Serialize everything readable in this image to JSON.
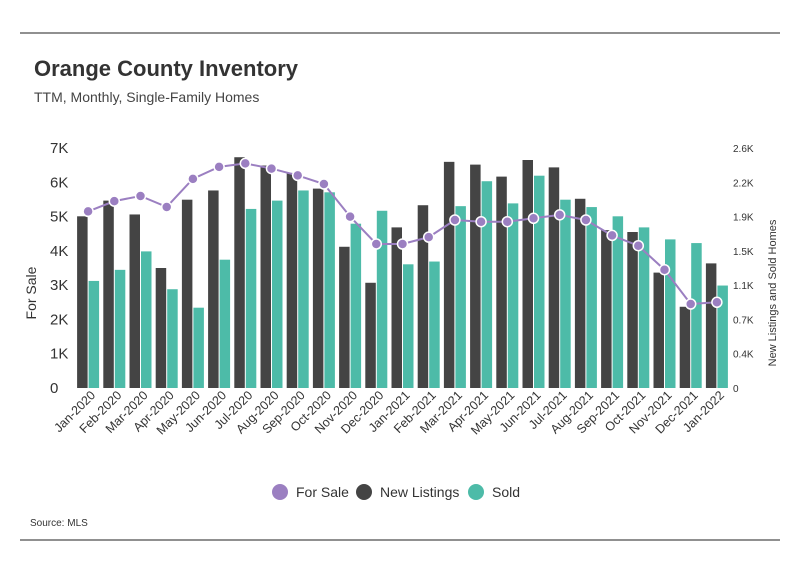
{
  "chart": {
    "title": "Orange County Inventory",
    "subtitle": "TTM, Monthly, Single-Family Homes",
    "source": "Source: MLS"
  },
  "colors": {
    "for_sale": "#9b7fc1",
    "new_listings": "#444444",
    "sold": "#4dbba8"
  },
  "chart_data": {
    "type": "bar",
    "title": "Orange County Inventory",
    "subtitle": "TTM, Monthly, Single-Family Homes",
    "ylabel": "For Sale",
    "y2label": "New Listings and Sold Homes",
    "ylim": [
      0,
      7000
    ],
    "y2lim": [
      0,
      2600
    ],
    "yticks": [
      "0",
      "1K",
      "2K",
      "3K",
      "4K",
      "5K",
      "6K",
      "7K"
    ],
    "y2ticks": [
      "0",
      "0.4K",
      "0.7K",
      "1.1K",
      "1.5K",
      "1.9K",
      "2.2K",
      "2.6K"
    ],
    "grid": false,
    "legend_position": "bottom",
    "categories": [
      "Jan-2020",
      "Feb-2020",
      "Mar-2020",
      "Apr-2020",
      "May-2020",
      "Jun-2020",
      "Jul-2020",
      "Aug-2020",
      "Sep-2020",
      "Oct-2020",
      "Nov-2020",
      "Dec-2020",
      "Jan-2021",
      "Feb-2021",
      "Mar-2021",
      "Apr-2021",
      "May-2021",
      "Jun-2021",
      "Jul-2021",
      "Aug-2021",
      "Sep-2021",
      "Oct-2021",
      "Nov-2021",
      "Dec-2021",
      "Jan-2022"
    ],
    "series": [
      {
        "name": "For Sale",
        "type": "line",
        "axis": "left",
        "values": [
          5150,
          5450,
          5600,
          5280,
          6100,
          6450,
          6550,
          6400,
          6200,
          5950,
          5000,
          4200,
          4200,
          4400,
          4900,
          4850,
          4850,
          4950,
          5050,
          4900,
          4450,
          4150,
          3450,
          2450,
          2500
        ]
      },
      {
        "name": "New Listings",
        "type": "bar",
        "axis": "right",
        "values": [
          1860,
          2030,
          1880,
          1300,
          2040,
          2140,
          2500,
          2410,
          2330,
          2160,
          1530,
          1140,
          1740,
          1980,
          2450,
          2420,
          2290,
          2470,
          2390,
          2050,
          1710,
          1690,
          1250,
          880,
          1350
        ]
      },
      {
        "name": "Sold",
        "type": "bar",
        "axis": "right",
        "values": [
          1160,
          1280,
          1480,
          1070,
          870,
          1390,
          1940,
          2030,
          2140,
          2120,
          1780,
          1920,
          1340,
          1370,
          1970,
          2240,
          2000,
          2300,
          2040,
          1960,
          1860,
          1740,
          1610,
          1570,
          1110
        ]
      }
    ]
  }
}
